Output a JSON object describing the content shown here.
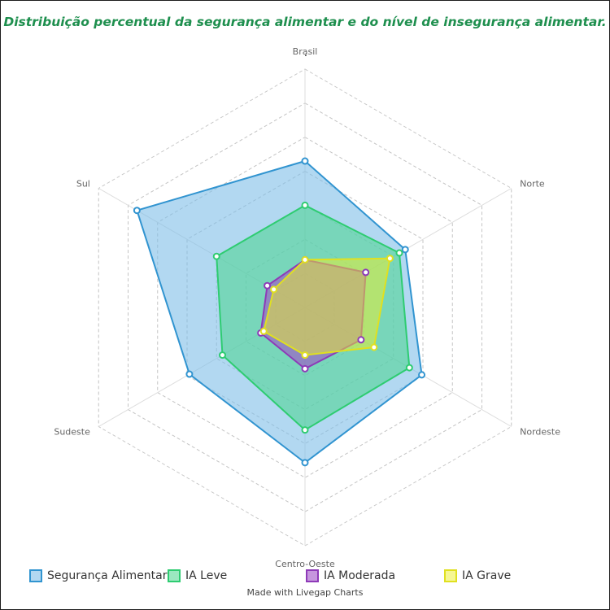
{
  "title": "Distribuição percentual da segurança alimentar e do nível de insegurança alimentar.",
  "subtitle": ".",
  "credit": "Made with Livegap Charts",
  "chart_data": {
    "type": "radar",
    "categories": [
      "Brasil",
      "Norte",
      "Nordeste",
      "Centro-Oeste",
      "Sudeste",
      "Sul"
    ],
    "rmax": 35,
    "grid_levels": 7,
    "series": [
      {
        "name": "Segurança Alimentar",
        "values": [
          21.5,
          17.0,
          19.8,
          22.8,
          19.6,
          28.5
        ],
        "stroke": "#3194d0",
        "fill": "rgba(126,190,232,0.6)"
      },
      {
        "name": "IA Leve",
        "values": [
          15.0,
          16.0,
          17.7,
          18.0,
          14.0,
          15.0
        ],
        "stroke": "#2ecc71",
        "fill": "rgba(72,214,140,0.55)"
      },
      {
        "name": "IA Moderada",
        "values": [
          7.0,
          10.3,
          9.5,
          9.0,
          7.5,
          6.4
        ],
        "stroke": "#8e3ab8",
        "fill": "rgba(160,80,200,0.6)"
      },
      {
        "name": "IA Grave",
        "values": [
          7.0,
          14.4,
          11.7,
          7.0,
          7.0,
          5.3
        ],
        "stroke": "#e0e020",
        "fill": "rgba(238,240,40,0.5)"
      }
    ]
  }
}
